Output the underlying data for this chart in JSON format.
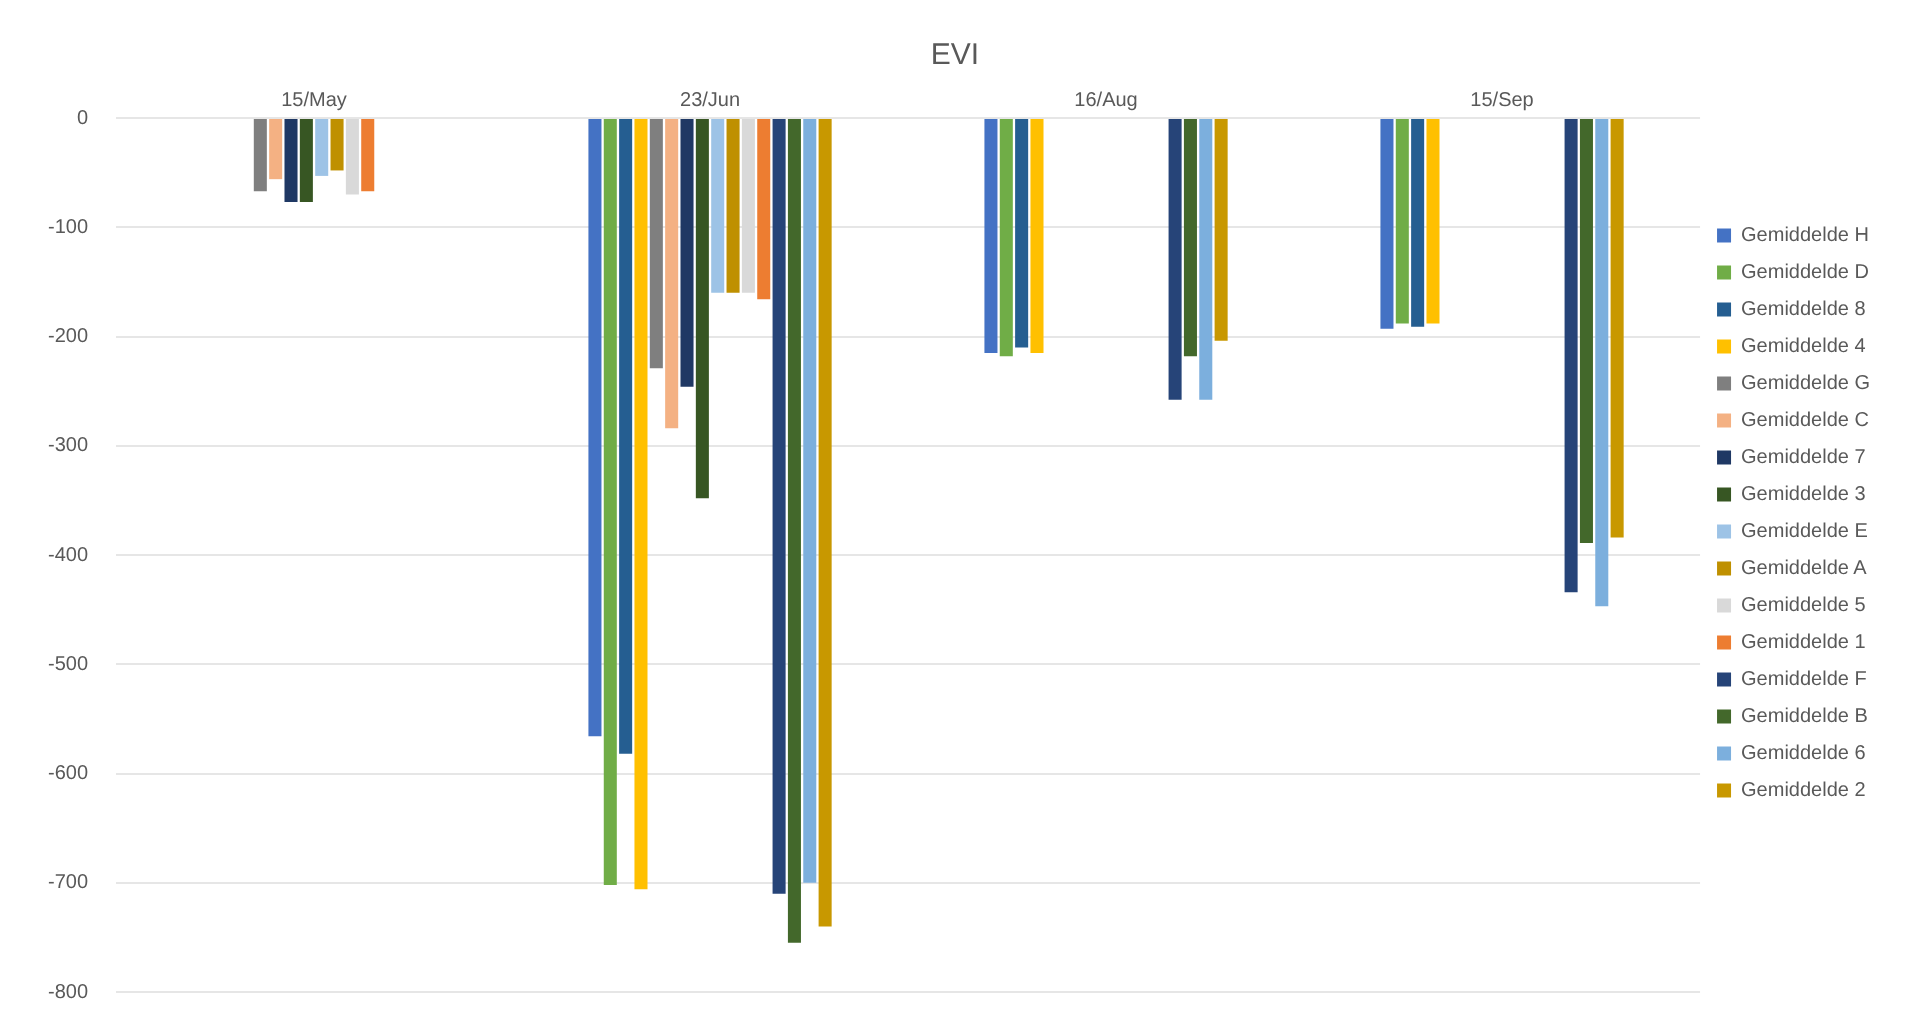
{
  "chart_data": {
    "type": "bar",
    "title": "EVI",
    "categories": [
      "15/May",
      "23/Jun",
      "16/Aug",
      "15/Sep"
    ],
    "ylim": [
      -800,
      0
    ],
    "yticks": [
      -800,
      -700,
      -600,
      -500,
      -400,
      -300,
      -200,
      -100,
      0
    ],
    "grid": "y",
    "legend": "right",
    "series": [
      {
        "name": "Gemiddelde H",
        "color": "#4472c4",
        "values": [
          null,
          -566,
          -215,
          -193
        ]
      },
      {
        "name": "Gemiddelde D",
        "color": "#70ad47",
        "values": [
          null,
          -702,
          -218,
          -188
        ]
      },
      {
        "name": "Gemiddelde 8",
        "color": "#255e91",
        "values": [
          null,
          -582,
          -210,
          -191
        ]
      },
      {
        "name": "Gemiddelde 4",
        "color": "#ffc000",
        "values": [
          null,
          -706,
          -215,
          -188
        ]
      },
      {
        "name": "Gemiddelde G",
        "color": "#7f7f7f",
        "values": [
          -67,
          -229,
          null,
          null
        ]
      },
      {
        "name": "Gemiddelde C",
        "color": "#f4b183",
        "values": [
          -56,
          -284,
          null,
          null
        ]
      },
      {
        "name": "Gemiddelde 7",
        "color": "#1f3864",
        "values": [
          -77,
          -246,
          null,
          null
        ]
      },
      {
        "name": "Gemiddelde 3",
        "color": "#375623",
        "values": [
          -77,
          -348,
          null,
          null
        ]
      },
      {
        "name": "Gemiddelde E",
        "color": "#9dc3e6",
        "values": [
          -53,
          -160,
          null,
          null
        ]
      },
      {
        "name": "Gemiddelde A",
        "color": "#bf9000",
        "values": [
          -48,
          -160,
          null,
          null
        ]
      },
      {
        "name": "Gemiddelde 5",
        "color": "#d9d9d9",
        "values": [
          -70,
          -160,
          null,
          null
        ]
      },
      {
        "name": "Gemiddelde 1",
        "color": "#ed7d31",
        "values": [
          -67,
          -166,
          null,
          null
        ]
      },
      {
        "name": "Gemiddelde F",
        "color": "#264478",
        "values": [
          null,
          -710,
          -258,
          -434
        ]
      },
      {
        "name": "Gemiddelde B",
        "color": "#43682b",
        "values": [
          null,
          -755,
          -218,
          -389
        ]
      },
      {
        "name": "Gemiddelde 6",
        "color": "#7cafdd",
        "values": [
          null,
          -700,
          -258,
          -447
        ]
      },
      {
        "name": "Gemiddelde 2",
        "color": "#c89800",
        "values": [
          null,
          -740,
          -204,
          -384
        ]
      }
    ]
  }
}
